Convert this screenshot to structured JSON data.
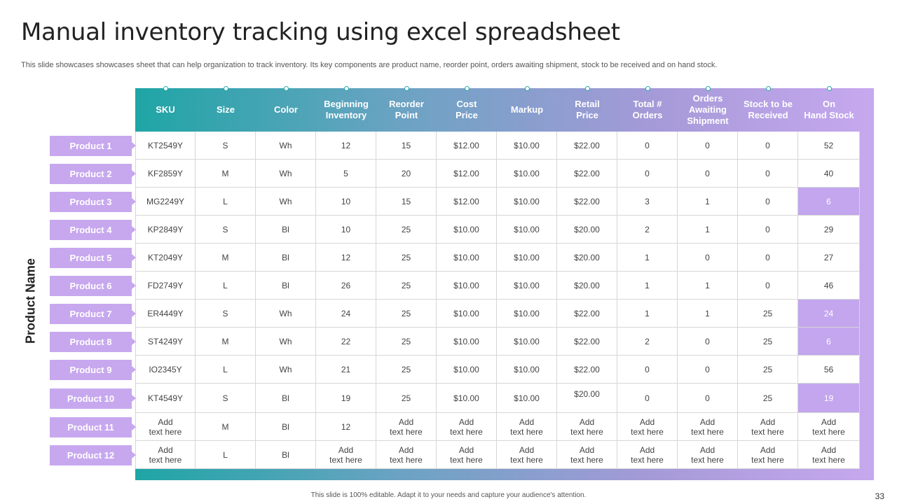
{
  "title": "Manual inventory tracking using excel spreadsheet",
  "subtitle": "This slide showcases showcases sheet that can help organization to track inventory. Its key components are product name, reorder point, orders awaiting shipment, stock to be received and on hand stock.",
  "side_label": "Product Name",
  "headers": [
    "SKU",
    "Size",
    "Color",
    "Beginning\nInventory",
    "Reorder\nPoint",
    "Cost\nPrice",
    "Markup",
    "Retail\nPrice",
    "Total #\nOrders",
    "Orders\nAwaiting\nShipment",
    "Stock to be\nReceived",
    "On\nHand Stock"
  ],
  "products": [
    "Product 1",
    "Product 2",
    "Product 3",
    "Product 4",
    "Product 5",
    "Product 6",
    "Product 7",
    "Product 8",
    "Product 9",
    "Product 10",
    "Product 11",
    "Product 12"
  ],
  "rows": [
    [
      "KT2549Y",
      "S",
      "Wh",
      "12",
      "15",
      "$12.00",
      "$10.00",
      "$22.00",
      "0",
      "0",
      "0",
      "52"
    ],
    [
      "KF2859Y",
      "M",
      "Wh",
      "5",
      "20",
      "$12.00",
      "$10.00",
      "$22.00",
      "0",
      "0",
      "0",
      "40"
    ],
    [
      "MG2249Y",
      "L",
      "Wh",
      "10",
      "15",
      "$12.00",
      "$10.00",
      "$22.00",
      "3",
      "1",
      "0",
      "6"
    ],
    [
      "KP2849Y",
      "S",
      "Bl",
      "10",
      "25",
      "$10.00",
      "$10.00",
      "$20.00",
      "2",
      "1",
      "0",
      "29"
    ],
    [
      "KT2049Y",
      "M",
      "Bl",
      "12",
      "25",
      "$10.00",
      "$10.00",
      "$20.00",
      "1",
      "0",
      "0",
      "27"
    ],
    [
      "FD2749Y",
      "L",
      "Bl",
      "26",
      "25",
      "$10.00",
      "$10.00",
      "$20.00",
      "1",
      "1",
      "0",
      "46"
    ],
    [
      "ER4449Y",
      "S",
      "Wh",
      "24",
      "25",
      "$10.00",
      "$10.00",
      "$22.00",
      "1",
      "1",
      "25",
      "24"
    ],
    [
      "ST4249Y",
      "M",
      "Wh",
      "22",
      "25",
      "$10.00",
      "$10.00",
      "$22.00",
      "2",
      "0",
      "25",
      "6"
    ],
    [
      "IO2345Y",
      "L",
      "Wh",
      "21",
      "25",
      "$10.00",
      "$10.00",
      "$22.00",
      "0",
      "0",
      "25",
      "56"
    ],
    [
      "KT4549Y",
      "S",
      "Bl",
      "19",
      "25",
      "$10.00",
      "$10.00",
      "$20.00",
      "0",
      "0",
      "25",
      "19"
    ],
    [
      "Add\ntext here",
      "M",
      "Bl",
      "12",
      "Add\ntext here",
      "Add\ntext here",
      "Add\ntext here",
      "Add\ntext here",
      "Add\ntext here",
      "Add\ntext here",
      "Add\ntext here",
      "Add\ntext here"
    ],
    [
      "Add\ntext here",
      "L",
      "Bl",
      "Add\ntext here",
      "Add\ntext here",
      "Add\ntext here",
      "Add\ntext here",
      "Add\ntext here",
      "Add\ntext here",
      "Add\ntext here",
      "Add\ntext here",
      "Add\ntext here"
    ]
  ],
  "highlight_rows": [
    2,
    6,
    7,
    9
  ],
  "highlight_color": "#c3a6ee",
  "footer": "This slide is 100% editable. Adapt it to your needs and capture your audience's attention.",
  "page_number": "33"
}
